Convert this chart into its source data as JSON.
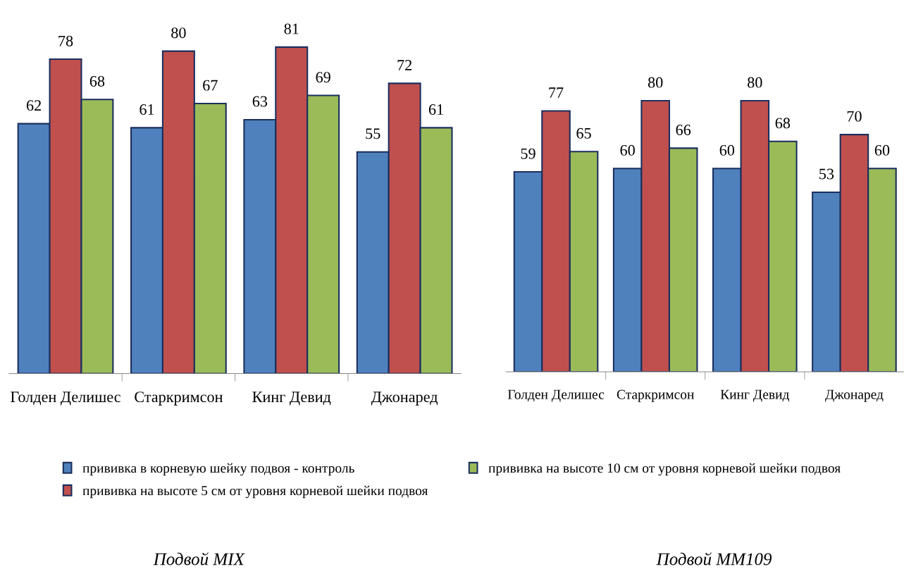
{
  "chart_data": [
    {
      "type": "bar",
      "title": "Подвой MIX",
      "categories": [
        "Голден Делишес",
        "Старкримсон",
        "Кинг Девид",
        "Джонаред"
      ],
      "data_labels": true,
      "legend": "bottom",
      "tick_labels": "x",
      "series": [
        {
          "name": "прививка в корневую шейку подвоя - контроль",
          "color": "#4f81bd",
          "values": [
            62,
            61,
            63,
            55
          ]
        },
        {
          "name": "прививка на высоте 5 см от уровня корневой шейки подвоя",
          "color": "#c0504d",
          "values": [
            78,
            80,
            81,
            72
          ]
        },
        {
          "name": "прививка на высоте 10 см от уровня корневой шейки подвоя",
          "color": "#9bbb59",
          "values": [
            68,
            67,
            69,
            61
          ]
        }
      ]
    },
    {
      "type": "bar",
      "title": "Подвой MM109",
      "categories": [
        "Голден Делишес",
        "Старкримсон",
        "Кинг Девид",
        "Джонаред"
      ],
      "data_labels": true,
      "tick_labels": "x",
      "series": [
        {
          "color": "#4f81bd",
          "values": [
            59,
            60,
            60,
            53
          ]
        },
        {
          "color": "#c0504d",
          "values": [
            77,
            80,
            80,
            70
          ]
        },
        {
          "color": "#9bbb59",
          "values": [
            65,
            66,
            68,
            60
          ]
        }
      ]
    }
  ]
}
